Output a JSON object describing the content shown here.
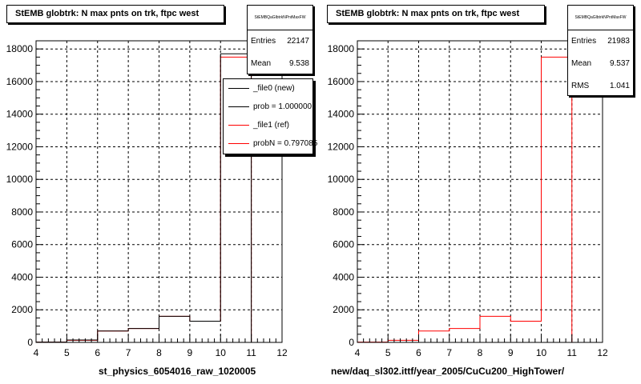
{
  "panels": [
    {
      "title": "StEMB globtrk: N max pnts on trk, ftpc west",
      "stats_name": "StEMBQaGlbtrkNPntMaxFW",
      "stats": [
        {
          "label": "Entries",
          "value": "22147"
        },
        {
          "label": "Mean",
          "value": "9.538"
        }
      ],
      "legend": [
        {
          "label": "_file0 (new)",
          "color": "#000000"
        },
        {
          "label": "prob = 1.000000",
          "color": "#000000"
        },
        {
          "label": "_file1 (ref)",
          "color": "#ff0000"
        },
        {
          "label": "probN = 0.797085",
          "color": "#ff0000"
        }
      ],
      "footer": "st_physics_6054016_raw_1020005"
    },
    {
      "title": "StEMB globtrk: N max pnts on trk, ftpc west",
      "stats_name": "StEMBQaGlbtrkNPntMaxFW",
      "stats": [
        {
          "label": "Entries",
          "value": "21983"
        },
        {
          "label": "Mean",
          "value": "9.537"
        },
        {
          "label": "RMS",
          "value": "1.041"
        }
      ],
      "legend": [],
      "footer": "new/daq_sl302.ittf/year_2005/CuCu200_HighTower/"
    }
  ],
  "chart_data": [
    {
      "type": "histogram",
      "title": "StEMB globtrk: N max pnts on trk, ftpc west",
      "xlim": [
        4,
        12
      ],
      "ylim": [
        0,
        18500
      ],
      "xticks": [
        4,
        5,
        6,
        7,
        8,
        9,
        10,
        11,
        12
      ],
      "yticks": [
        0,
        2000,
        4000,
        6000,
        8000,
        10000,
        12000,
        14000,
        16000,
        18000
      ],
      "grid": true,
      "bin_edges": [
        4,
        5,
        6,
        7,
        8,
        9,
        10,
        11,
        12
      ],
      "series": [
        {
          "name": "_file0 (new)",
          "color": "#000000",
          "values": [
            20,
            150,
            700,
            850,
            1600,
            1300,
            17700,
            0
          ]
        },
        {
          "name": "_file1 (ref)",
          "color": "#ff0000",
          "values": [
            20,
            130,
            700,
            850,
            1600,
            1300,
            17500,
            0
          ]
        }
      ]
    },
    {
      "type": "histogram",
      "title": "StEMB globtrk: N max pnts on trk, ftpc west",
      "xlim": [
        4,
        12
      ],
      "ylim": [
        0,
        18500
      ],
      "xticks": [
        4,
        5,
        6,
        7,
        8,
        9,
        10,
        11,
        12
      ],
      "yticks": [
        0,
        2000,
        4000,
        6000,
        8000,
        10000,
        12000,
        14000,
        16000,
        18000
      ],
      "grid": true,
      "bin_edges": [
        4,
        5,
        6,
        7,
        8,
        9,
        10,
        11,
        12
      ],
      "series": [
        {
          "name": "_file1 (ref)",
          "color": "#ff0000",
          "values": [
            20,
            130,
            700,
            850,
            1600,
            1300,
            17500,
            0
          ]
        }
      ]
    }
  ]
}
